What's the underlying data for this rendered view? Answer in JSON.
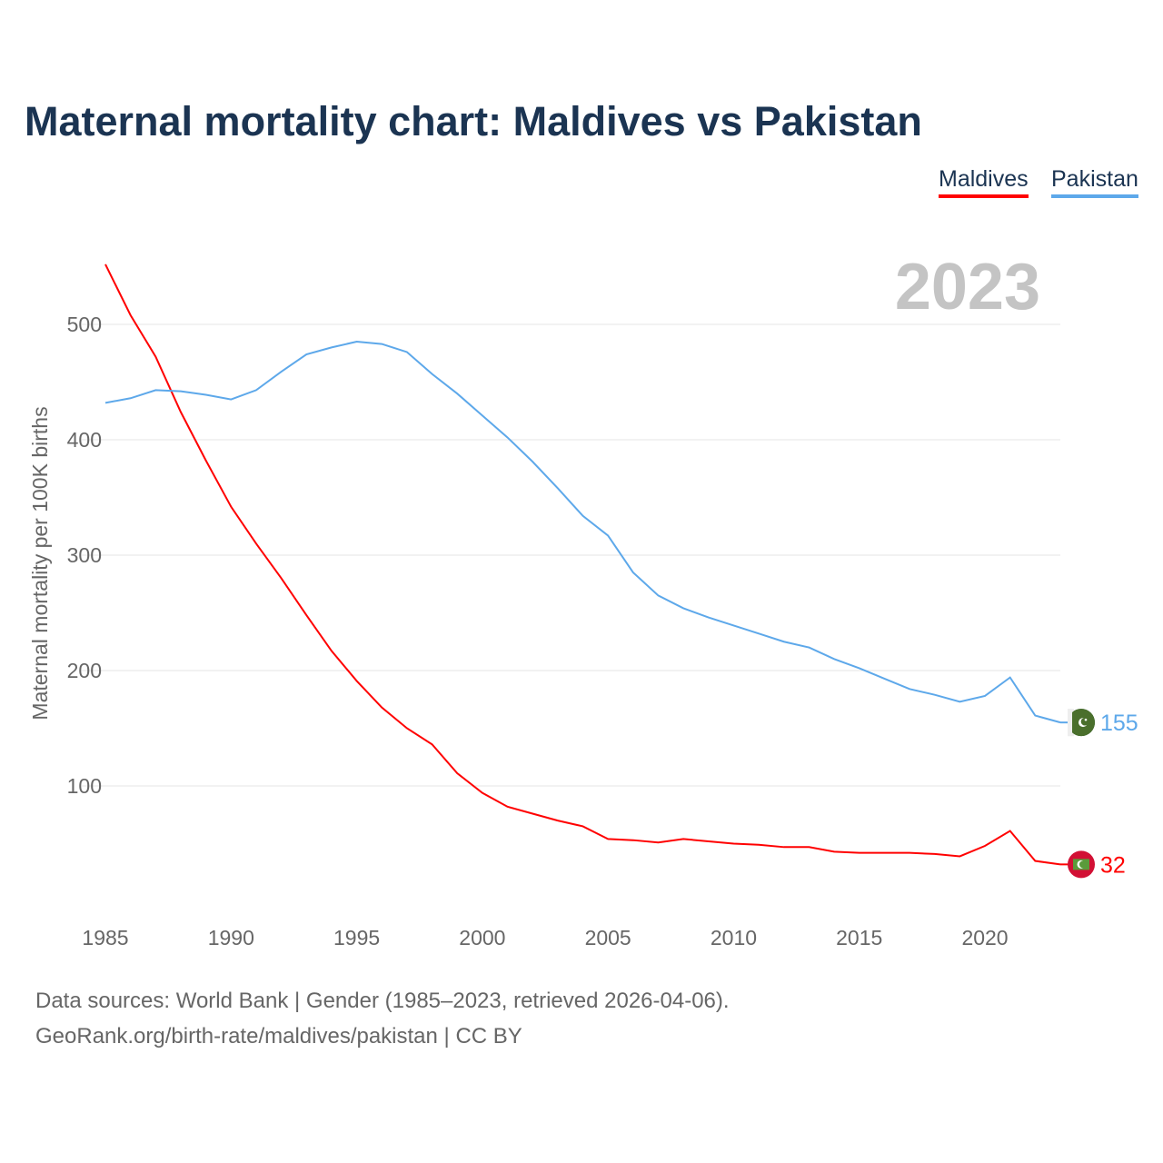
{
  "title": "Maternal mortality chart: Maldives vs Pakistan",
  "footer": {
    "line1": "Data sources: World Bank | Gender (1985–2023, retrieved 2026-04-06).",
    "line2": "GeoRank.org/birth-rate/maldives/pakistan | CC BY"
  },
  "chart_data": {
    "type": "line",
    "title": "Maternal mortality chart: Maldives vs Pakistan",
    "ylabel": "Maternal mortality per 100K births",
    "xlabel": "",
    "year_label": "2023",
    "xlim": [
      1985,
      2023
    ],
    "ylim": [
      0,
      560
    ],
    "x_ticks": [
      "1985",
      "1990",
      "1995",
      "2000",
      "2005",
      "2010",
      "2015",
      "2020"
    ],
    "y_ticks": [
      "100",
      "200",
      "300",
      "400",
      "500"
    ],
    "grid": true,
    "legend_placement": "top-right",
    "x": [
      1985,
      1986,
      1987,
      1988,
      1989,
      1990,
      1991,
      1992,
      1993,
      1994,
      1995,
      1996,
      1997,
      1998,
      1999,
      2000,
      2001,
      2002,
      2003,
      2004,
      2005,
      2006,
      2007,
      2008,
      2009,
      2010,
      2011,
      2012,
      2013,
      2014,
      2015,
      2016,
      2017,
      2018,
      2019,
      2020,
      2021,
      2022,
      2023
    ],
    "series": [
      {
        "name": "Maldives",
        "color": "#ff0000",
        "end_label": "32",
        "values": [
          552,
          508,
          472,
          424,
          382,
          342,
          310,
          280,
          248,
          217,
          191,
          168,
          150,
          136,
          111,
          94,
          82,
          76,
          70,
          65,
          54,
          53,
          51,
          54,
          52,
          50,
          49,
          47,
          47,
          43,
          42,
          42,
          42,
          41,
          39,
          48,
          61,
          35,
          32
        ]
      },
      {
        "name": "Pakistan",
        "color": "#5da8ea",
        "end_label": "155",
        "values": [
          432,
          436,
          443,
          442,
          439,
          435,
          443,
          459,
          474,
          480,
          485,
          483,
          476,
          457,
          440,
          421,
          402,
          381,
          358,
          334,
          317,
          285,
          265,
          254,
          246,
          239,
          232,
          225,
          220,
          210,
          202,
          193,
          184,
          179,
          173,
          178,
          194,
          161,
          155
        ]
      }
    ]
  }
}
